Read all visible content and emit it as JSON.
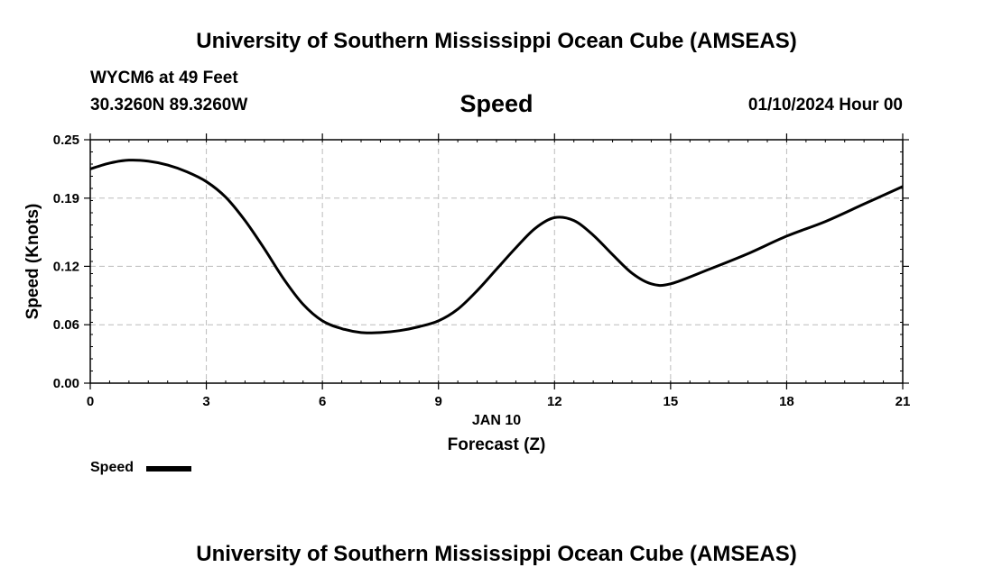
{
  "header": {
    "title": "University of Southern Mississippi Ocean Cube (AMSEAS)",
    "station": "WYCM6 at 49 Feet",
    "coords": "30.3260N  89.3260W",
    "variable": "Speed",
    "datetime": "01/10/2024 Hour 00"
  },
  "footer": {
    "title": "University of Southern Mississippi Ocean Cube (AMSEAS)"
  },
  "legend": {
    "label": "Speed",
    "color": "#000000"
  },
  "chart_data": {
    "type": "line",
    "title": "Speed",
    "xlabel": "Forecast (Z)",
    "xsublabel": "JAN 10",
    "ylabel": "Speed (Knots)",
    "xlim": [
      0,
      21
    ],
    "ylim": [
      0,
      0.25
    ],
    "xticks": [
      "0",
      "3",
      "6",
      "9",
      "12",
      "15",
      "18",
      "21"
    ],
    "yticks": [
      "0.00",
      "0.06",
      "0.12",
      "0.19",
      "0.25"
    ],
    "grid": true,
    "legend_position": "bottom-left",
    "series": [
      {
        "name": "Speed",
        "color": "#000000",
        "x": [
          0,
          0.5,
          1,
          1.5,
          2,
          2.5,
          3,
          3.5,
          4,
          4.5,
          5,
          5.5,
          6,
          6.5,
          7,
          7.5,
          8,
          8.5,
          9,
          9.5,
          10,
          10.5,
          11,
          11.5,
          12,
          12.5,
          13,
          13.5,
          14,
          14.5,
          15,
          16,
          17,
          18,
          19,
          20,
          21
        ],
        "values": [
          0.22,
          0.226,
          0.229,
          0.228,
          0.224,
          0.217,
          0.207,
          0.191,
          0.167,
          0.138,
          0.107,
          0.081,
          0.064,
          0.056,
          0.052,
          0.052,
          0.054,
          0.058,
          0.064,
          0.076,
          0.095,
          0.117,
          0.139,
          0.159,
          0.17,
          0.167,
          0.152,
          0.132,
          0.113,
          0.102,
          0.102,
          0.117,
          0.133,
          0.151,
          0.166,
          0.184,
          0.202
        ]
      }
    ]
  }
}
